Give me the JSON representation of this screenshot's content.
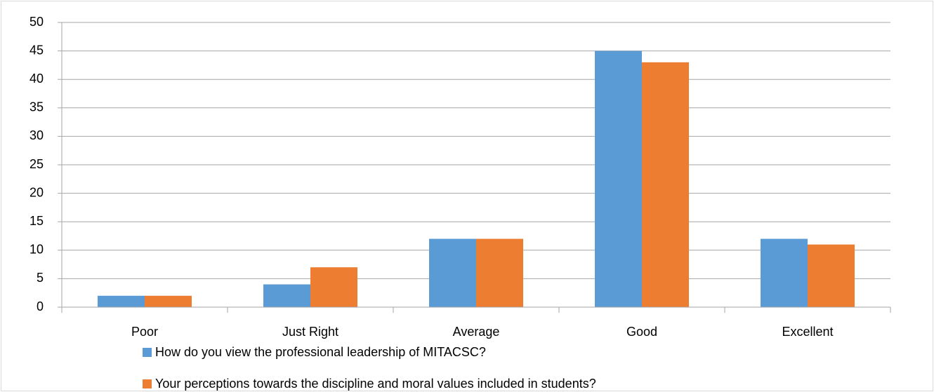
{
  "chart_data": {
    "type": "bar",
    "categories": [
      "Poor",
      "Just Right",
      "Average",
      "Good",
      "Excellent"
    ],
    "series": [
      {
        "name": "How do you view the professional leadership of MITACSC?",
        "color": "#5b9bd5",
        "values": [
          2,
          4,
          12,
          45,
          12
        ]
      },
      {
        "name": "Your perceptions towards the discipline and moral values included in students?",
        "color": "#ed7d31",
        "values": [
          2,
          7,
          12,
          43,
          11
        ]
      }
    ],
    "ylim": [
      0,
      50
    ],
    "yticks": [
      0,
      5,
      10,
      15,
      20,
      25,
      30,
      35,
      40,
      45,
      50
    ],
    "grid": true,
    "legend": "bottom"
  }
}
